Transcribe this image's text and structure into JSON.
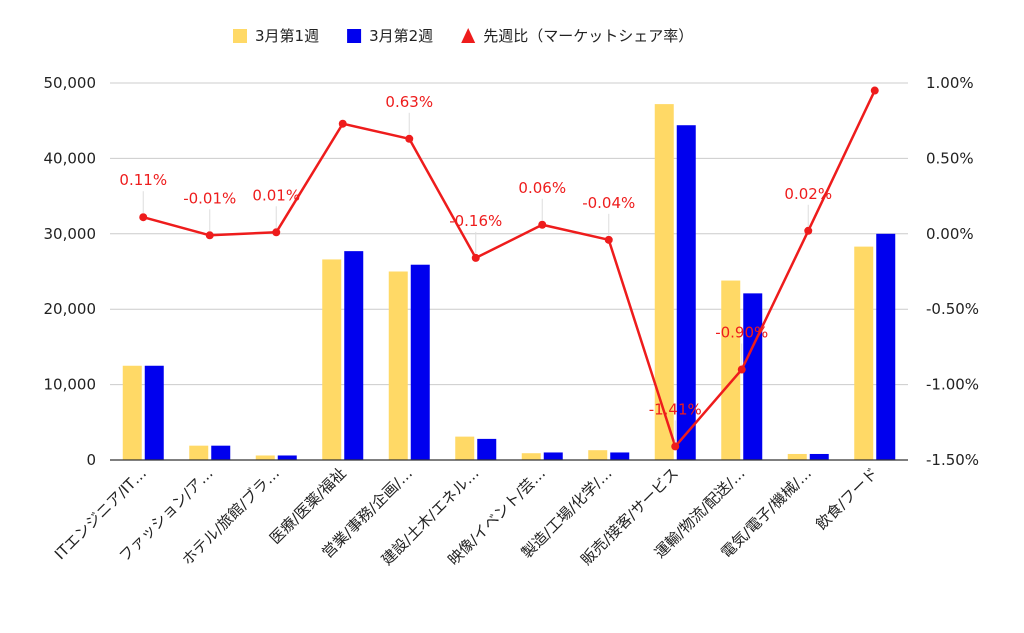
{
  "chart_data": {
    "type": "bar",
    "categories": [
      "ITエンジニア/IT…",
      "ファッション/ア…",
      "ホテル/旅館/ブラ…",
      "医療/医薬/福祉",
      "営業/事務/企画/…",
      "建設/土木/エネル…",
      "映像/イベント/芸…",
      "製造/工場/化学/…",
      "販売/接客/サービス",
      "運輸/物流/配送/…",
      "電気/電子/機械/…",
      "飲食/フード"
    ],
    "series": [
      {
        "name": "3月第1週",
        "type": "bar",
        "axis": "left",
        "color": "#ffd966",
        "values": [
          12500,
          1900,
          600,
          26600,
          25000,
          3100,
          900,
          1300,
          47200,
          23800,
          800,
          28300
        ]
      },
      {
        "name": "3月第2週",
        "type": "bar",
        "axis": "left",
        "color": "#0000ee",
        "values": [
          12500,
          1900,
          600,
          27700,
          25900,
          2800,
          1000,
          1000,
          44400,
          22100,
          800,
          30000
        ]
      },
      {
        "name": "先週比（マーケットシェア率）",
        "type": "line",
        "axis": "right",
        "color": "#ee1c1c",
        "values": [
          0.11,
          -0.01,
          0.01,
          0.73,
          0.63,
          -0.16,
          0.06,
          -0.04,
          -1.41,
          -0.9,
          0.02,
          0.95
        ],
        "labels": [
          "0.11%",
          "-0.01%",
          "0.01%",
          "",
          "0.63%",
          "-0.16%",
          "0.06%",
          "-0.04%",
          "-1.41%",
          "-0.90%",
          "0.02%",
          ""
        ]
      }
    ],
    "y_left": {
      "min": 0,
      "max": 50000,
      "ticks": [
        "0",
        "10,000",
        "20,000",
        "30,000",
        "40,000",
        "50,000"
      ]
    },
    "y_right": {
      "min": -1.5,
      "max": 1.0,
      "ticks": [
        "-1.50%",
        "-1.00%",
        "-0.50%",
        "0.00%",
        "0.50%",
        "1.00%"
      ]
    },
    "grid": true,
    "legend_position": "top-center",
    "title": "",
    "xlabel": "",
    "ylabel": ""
  }
}
